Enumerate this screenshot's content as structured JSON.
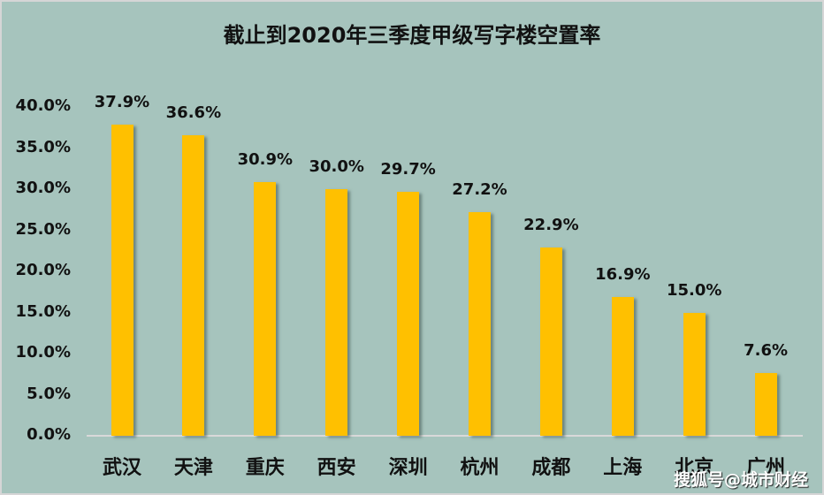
{
  "chart_data": {
    "type": "bar",
    "title": "截止到2020年三季度甲级写字楼空置率",
    "xlabel": "",
    "ylabel": "",
    "categories": [
      "武汉",
      "天津",
      "重庆",
      "西安",
      "深圳",
      "杭州",
      "成都",
      "上海",
      "北京",
      "广州"
    ],
    "values": [
      37.9,
      36.6,
      30.9,
      30.0,
      29.7,
      27.2,
      22.9,
      16.9,
      15.0,
      7.6
    ],
    "value_labels": [
      "37.9%",
      "36.6%",
      "30.9%",
      "30.0%",
      "29.7%",
      "27.2%",
      "22.9%",
      "16.9%",
      "15.0%",
      "7.6%"
    ],
    "ylim": [
      0,
      40
    ],
    "yticks": [
      "0.0%",
      "5.0%",
      "10.0%",
      "15.0%",
      "20.0%",
      "25.0%",
      "30.0%",
      "35.0%",
      "40.0%"
    ],
    "grid": false,
    "legend": null,
    "bar_color": "#ffc000",
    "background_color": "#a6c4bd"
  },
  "watermark": "搜狐号@城市财经"
}
